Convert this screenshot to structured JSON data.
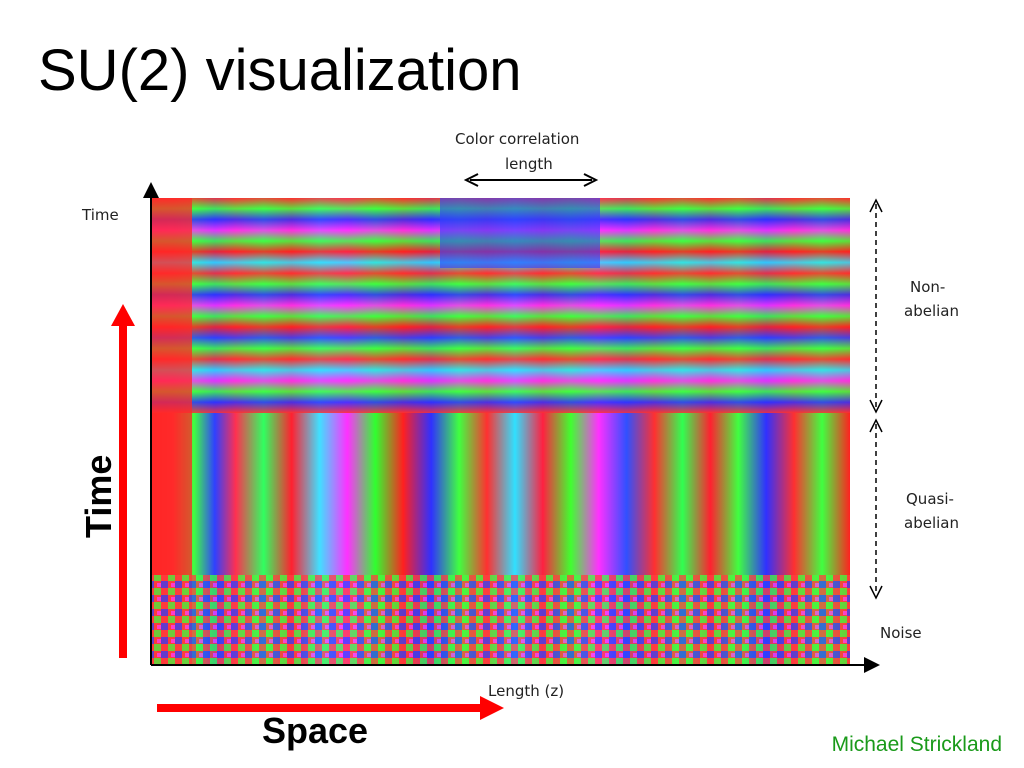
{
  "slide": {
    "title": "SU(2) visualization",
    "author": "Michael Strickland"
  },
  "figure": {
    "top_label_line1": "Color correlation",
    "top_label_line2": "length",
    "axis_time_small": "Time",
    "axis_length": "Length (z)",
    "region_labels": {
      "nonabelian_line1": "Non-",
      "nonabelian_line2": "abelian",
      "quasiabelian_line1": "Quasi-",
      "quasiabelian_line2": "abelian",
      "noise": "Noise"
    },
    "arrow_color": "#ff0000"
  },
  "annotations": {
    "time_big": "Time",
    "space_big": "Space"
  }
}
